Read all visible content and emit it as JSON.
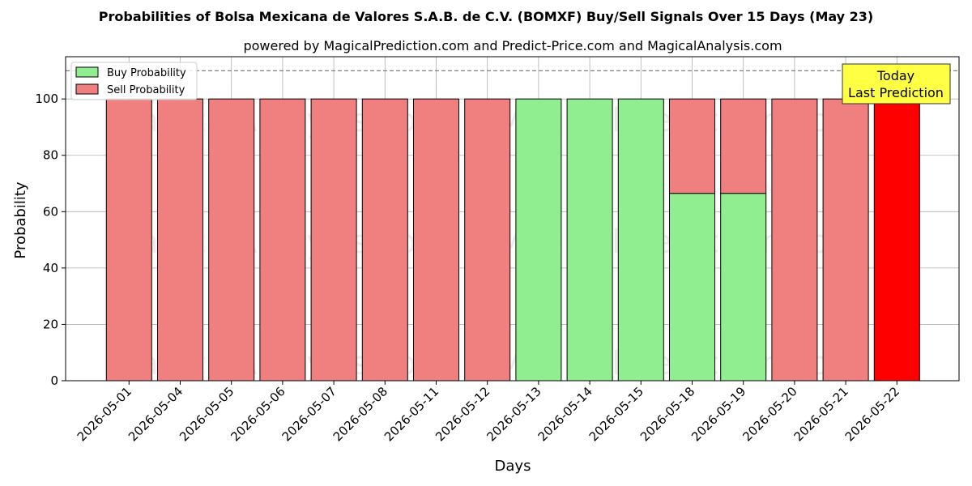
{
  "chart_data": {
    "type": "bar",
    "stacked": true,
    "title": "Probabilities of Bolsa Mexicana de Valores S.A.B. de C.V. (BOMXF) Buy/Sell Signals Over 15 Days (May 23)",
    "subtitle": "powered by MagicalPrediction.com and Predict-Price.com and MagicalAnalysis.com",
    "xlabel": "Days",
    "ylabel": "Probability",
    "ylim": [
      0,
      115
    ],
    "yticks": [
      0,
      20,
      40,
      60,
      80,
      100
    ],
    "reference_line": 110,
    "grid": true,
    "legend_position": "top-left",
    "categories": [
      "2026-05-01",
      "2026-05-04",
      "2026-05-05",
      "2026-05-06",
      "2026-05-07",
      "2026-05-08",
      "2026-05-11",
      "2026-05-12",
      "2026-05-13",
      "2026-05-14",
      "2026-05-15",
      "2026-05-18",
      "2026-05-19",
      "2026-05-20",
      "2026-05-21",
      "2026-05-22"
    ],
    "series": [
      {
        "name": "Buy Probability",
        "color": "#90ee90",
        "values": [
          0,
          0,
          0,
          0,
          0,
          0,
          0,
          0,
          100,
          100,
          100,
          66.5,
          66.5,
          0,
          0,
          0
        ]
      },
      {
        "name": "Sell Probability",
        "color": "#f08080",
        "values": [
          100,
          100,
          100,
          100,
          100,
          100,
          100,
          100,
          0,
          0,
          0,
          33.5,
          33.5,
          100,
          100,
          100
        ]
      }
    ],
    "highlight_color": "#ff0000",
    "annotation": {
      "lines": [
        "Today",
        "Last Prediction"
      ],
      "background": "#ffff44"
    },
    "watermarks": [
      "MagicalAnalysis.com",
      "MagicalPrediction.com"
    ]
  }
}
